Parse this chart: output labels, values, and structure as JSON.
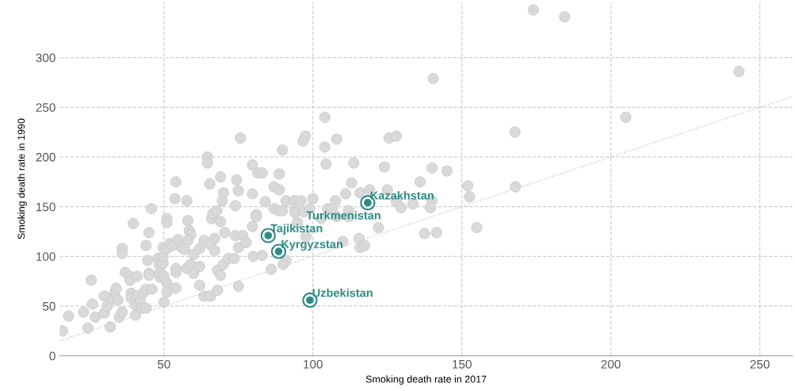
{
  "chart_data": {
    "type": "scatter",
    "xlabel": "Smoking death rate in 2017",
    "ylabel": "Smoking death rate in 1990",
    "xlim": [
      15,
      261
    ],
    "ylim": [
      0,
      356
    ],
    "xticks": [
      50,
      100,
      150,
      200,
      250
    ],
    "yticks": [
      0,
      50,
      100,
      150,
      200,
      250,
      300
    ],
    "grid": true,
    "marker": "circle",
    "series": [
      {
        "type": "scatter",
        "color": "#d9d9d9",
        "x": [
          16,
          18,
          24.5,
          23,
          26,
          27,
          25.6,
          30,
          30,
          32,
          31,
          33,
          33.5,
          34,
          34.6,
          35,
          36,
          37,
          38.6,
          38.6,
          39,
          39,
          40.5,
          40.5,
          41,
          41,
          42,
          42.5,
          43,
          44,
          44,
          46,
          39.7,
          36,
          36,
          45,
          45.8,
          44,
          44.5,
          45,
          45,
          48,
          48.4,
          48.7,
          48.7,
          49.7,
          49.7,
          50,
          51,
          51,
          50,
          51,
          51,
          49.7,
          51,
          52,
          54,
          53.7,
          53,
          54,
          54,
          54,
          54.8,
          56,
          57.7,
          58,
          58.5,
          59,
          58,
          57,
          57.7,
          59,
          60,
          60,
          62,
          62,
          62,
          63.5,
          63.5,
          65.6,
          64.6,
          64.6,
          65.4,
          66,
          66.4,
          67.8,
          67,
          65.6,
          67,
          68,
          68,
          69,
          70,
          69,
          69.6,
          70,
          69,
          70.4,
          71.7,
          73.6,
          74,
          74,
          74.4,
          75,
          75,
          76.5,
          77.6,
          75,
          75.7,
          79.7,
          79.7,
          79.7,
          80,
          81,
          81,
          81.5,
          104,
          97.5,
          96.7,
          108,
          89.8,
          104,
          125.6,
          128,
          104.4,
          113.7,
          124,
          140,
          145,
          83,
          88.7,
          87,
          88.7,
          113,
          136,
          152,
          152.6,
          111,
          115.8,
          119,
          125,
          84,
          91,
          93.8,
          96,
          100,
          107.6,
          128,
          133.6,
          140,
          129.6,
          139.4,
          87,
          88.5,
          89.8,
          94,
          94,
          97,
          99,
          105,
          106.5,
          112,
          94.8,
          102.8,
          108,
          112,
          122,
          137.5,
          141.5,
          97.7,
          115.5,
          115.8,
          117.4,
          110,
          83,
          91,
          90,
          86,
          174,
          184.5,
          243,
          205,
          167.8,
          168,
          155,
          140.4
        ],
        "values": [
          25,
          40,
          28,
          44,
          52,
          39,
          76,
          43,
          60,
          29,
          50,
          57,
          64,
          68,
          56,
          39,
          44,
          84,
          80,
          76,
          63,
          58,
          51,
          41,
          80,
          60,
          56,
          48,
          63,
          67,
          48,
          67,
          133,
          108,
          103,
          124,
          148,
          111,
          96,
          83,
          81,
          98,
          92,
          84,
          79,
          93,
          100,
          80,
          73,
          64,
          54,
          138,
          134,
          109,
          108,
          113,
          175,
          158,
          111,
          68,
          88,
          84,
          117,
          109,
          156,
          136,
          126,
          122,
          116,
          107,
          88,
          92,
          102,
          83,
          108,
          90,
          71,
          116,
          60,
          60,
          200,
          194,
          173,
          138,
          143,
          146,
          118,
          112,
          106,
          66,
          86,
          81,
          92,
          135,
          156,
          164,
          180,
          124,
          98,
          98,
          121,
          151,
          177,
          166,
          109,
          121,
          114,
          70,
          219,
          192,
          163,
          130,
          100,
          142,
          140,
          184,
          240,
          221,
          216,
          218,
          207,
          210,
          219,
          221,
          193,
          194,
          190,
          189,
          186,
          184,
          183,
          170,
          167,
          174,
          175,
          171,
          160,
          163,
          164,
          167,
          167,
          155,
          156,
          156,
          156,
          158,
          156,
          155,
          153,
          156,
          149,
          149,
          148,
          146,
          146,
          148,
          144,
          145,
          148,
          148,
          148,
          146,
          134,
          138,
          140,
          140,
          129,
          123,
          124,
          120,
          118,
          109,
          111,
          115,
          101,
          96,
          92,
          87,
          348,
          341,
          286,
          240,
          225,
          170,
          129,
          279
        ]
      },
      {
        "type": "scatter",
        "color": "#2e8b86",
        "x": [
          85,
          88.5,
          118.4,
          99
        ],
        "values": [
          121,
          105,
          154,
          56
        ]
      },
      {
        "type": "line",
        "color": "#c4c4c4",
        "line_style": "dotted",
        "marker": "none",
        "x": [
          15,
          261
        ],
        "values": [
          15,
          261
        ]
      }
    ],
    "annotations": [
      {
        "text": "Kazakhstan",
        "x": 118.4,
        "y": 154
      },
      {
        "text": "Turkmenistan",
        "x": 97,
        "y": 134
      },
      {
        "text": "Tajikistan",
        "x": 85,
        "y": 121
      },
      {
        "text": "Kyrgyzstan",
        "x": 88.5,
        "y": 105
      },
      {
        "text": "Uzbekistan",
        "x": 99,
        "y": 56
      }
    ]
  }
}
